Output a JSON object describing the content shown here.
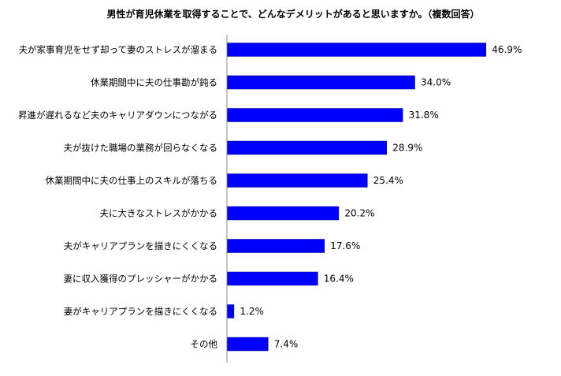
{
  "chart_data": {
    "type": "bar",
    "orientation": "horizontal",
    "title": "男性が育児休業を取得することで、どんなデメリットがあると思いますか。（複数回答）",
    "categories": [
      "夫が家事育児をせず却って妻のストレスが溜まる",
      "休業期間中に夫の仕事勘が鈍る",
      "昇進が遅れるなど夫のキャリアダウンにつながる",
      "夫が抜けた職場の業務が回らなくなる",
      "休業期間中に夫の仕事上のスキルが落ちる",
      "夫に大きなストレスがかかる",
      "夫がキャリアプランを描きにくくなる",
      "妻に収入獲得のプレッシャーがかかる",
      "妻がキャリアプランを描きにくくなる",
      "その他"
    ],
    "values": [
      46.9,
      34.0,
      31.8,
      28.9,
      25.4,
      20.2,
      17.6,
      16.4,
      1.2,
      7.4
    ],
    "value_labels": [
      "46.9%",
      "34.0%",
      "31.8%",
      "28.9%",
      "25.4%",
      "20.2%",
      "17.6%",
      "16.4%",
      "1.2%",
      "7.4%"
    ],
    "bar_color": "#0000ff",
    "bar_edge_color": "#000080",
    "xlim": [
      0,
      50
    ],
    "grid": false,
    "legend": "none"
  }
}
